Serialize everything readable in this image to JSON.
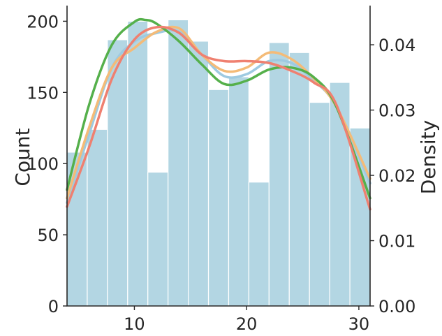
{
  "chart_data": {
    "type": "bar",
    "title": "",
    "xlabel": "",
    "ylabel": "Count",
    "y2label": "Density",
    "xlim": [
      4,
      31
    ],
    "ylim": [
      0,
      211
    ],
    "y2lim": [
      0,
      0.046
    ],
    "x_ticks": [
      10,
      20,
      30
    ],
    "y_ticks": [
      0,
      50,
      100,
      150,
      200
    ],
    "y2_ticks": [
      0.0,
      0.01,
      0.02,
      0.03,
      0.04
    ],
    "x_tick_labels": [
      "10",
      "20",
      "30"
    ],
    "y_tick_labels": [
      "0",
      "50",
      "100",
      "150",
      "200"
    ],
    "y2_tick_labels": [
      "0.00",
      "0.01",
      "0.02",
      "0.03",
      "0.04"
    ],
    "grid": false,
    "histogram": {
      "bin_edges": [
        4.0,
        5.8,
        7.6,
        9.4,
        11.2,
        13.0,
        14.8,
        16.6,
        18.4,
        20.2,
        22.0,
        23.8,
        25.6,
        27.4,
        29.2,
        31.0
      ],
      "counts": [
        108,
        124,
        187,
        200,
        94,
        201,
        186,
        152,
        161,
        87,
        185,
        178,
        143,
        157,
        125
      ],
      "color": "#b3d6e3"
    },
    "series": [
      {
        "color": "#9ecae1",
        "x": [
          4,
          6,
          8,
          10,
          12,
          14,
          16,
          18,
          20,
          22,
          24,
          26,
          28,
          31
        ],
        "y": [
          0.0158,
          0.0265,
          0.0365,
          0.0405,
          0.0418,
          0.042,
          0.0385,
          0.0352,
          0.0355,
          0.0375,
          0.0372,
          0.0345,
          0.0305,
          0.0188
        ]
      },
      {
        "color": "#f4bb78",
        "x": [
          4,
          6,
          8,
          10,
          12,
          14,
          16,
          18,
          20,
          22,
          24,
          26,
          28,
          31
        ],
        "y": [
          0.0165,
          0.0275,
          0.0365,
          0.0395,
          0.042,
          0.0425,
          0.0385,
          0.036,
          0.0365,
          0.0388,
          0.0378,
          0.0348,
          0.0305,
          0.0195
        ]
      },
      {
        "color": "#55b04b",
        "x": [
          4,
          6,
          8,
          10,
          11,
          12,
          14,
          16,
          18,
          20,
          22,
          24,
          26,
          28,
          31
        ],
        "y": [
          0.0178,
          0.031,
          0.04,
          0.0435,
          0.0438,
          0.0432,
          0.0405,
          0.037,
          0.034,
          0.0345,
          0.0362,
          0.0365,
          0.035,
          0.0305,
          0.0165
        ]
      },
      {
        "color": "#ef8070",
        "x": [
          4,
          6,
          8,
          10,
          12,
          14,
          16,
          18,
          20,
          22,
          24,
          26,
          28,
          31
        ],
        "y": [
          0.0152,
          0.0245,
          0.0348,
          0.0408,
          0.0427,
          0.0418,
          0.0385,
          0.0375,
          0.0375,
          0.0372,
          0.036,
          0.0342,
          0.0308,
          0.0148
        ]
      }
    ]
  }
}
